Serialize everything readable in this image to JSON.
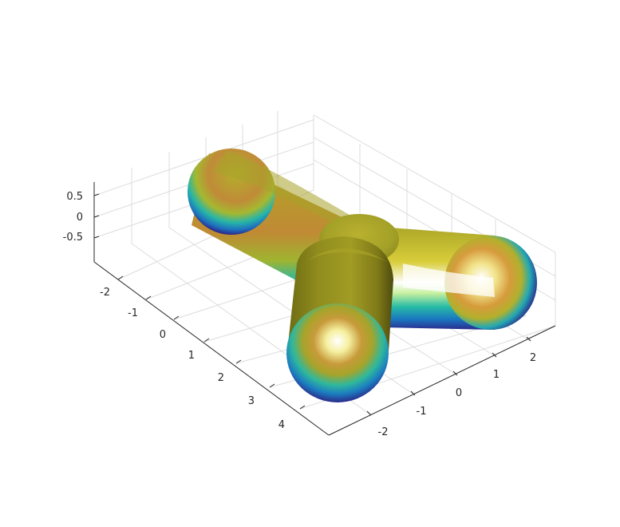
{
  "chart_data": {
    "type": "surface",
    "title": "",
    "xlabel": "",
    "ylabel": "",
    "zlabel": "",
    "colormap": "parula",
    "lighting": "on",
    "grid": true,
    "x_ticks": [
      "-2",
      "-1",
      "0",
      "1",
      "2"
    ],
    "y_ticks": [
      "-2",
      "-1",
      "0",
      "1",
      "2",
      "3",
      "4"
    ],
    "z_ticks": [
      "0.5",
      "0",
      "-0.5"
    ],
    "xlim": [
      -3,
      3
    ],
    "ylim": [
      -3,
      5
    ],
    "zlim": [
      -1,
      1
    ],
    "shape": "Y-shaped tube: three capsule arms of radius ~1 joined at a central junction",
    "colors": {
      "axis": "#262626",
      "grid": "#dcdcdc",
      "surface_dark": "#2a2f8a",
      "surface_mid": "#14a5a5",
      "surface_high": "#b5b52a",
      "surface_top": "#c48c2e",
      "highlight": "#ffffff"
    }
  }
}
